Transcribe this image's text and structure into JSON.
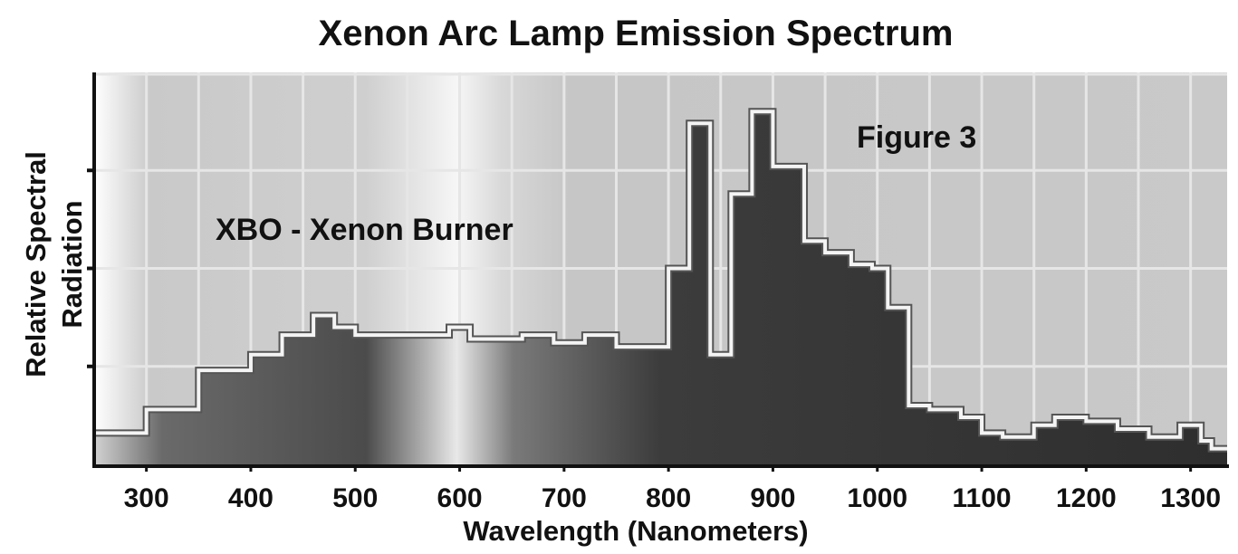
{
  "chart_data": {
    "type": "area",
    "title": "Xenon Arc Lamp Emission Spectrum",
    "xlabel": "Wavelength (Nanometers)",
    "ylabel_lines": [
      "Relative Spectral",
      "Radiation"
    ],
    "xlim": [
      250,
      1335
    ],
    "ylim": [
      0,
      100
    ],
    "x_ticks": [
      300,
      400,
      500,
      600,
      700,
      800,
      900,
      1000,
      1100,
      1200,
      1300
    ],
    "x_tick_labels": [
      "300",
      "400",
      "500",
      "600",
      "700",
      "800",
      "900",
      "1000",
      "1100",
      "1200",
      "1300"
    ],
    "y_ticks": [
      25,
      50,
      75
    ],
    "grid": true,
    "step_x": [
      250,
      300,
      350,
      400,
      430,
      460,
      480,
      500,
      590,
      610,
      660,
      690,
      720,
      750,
      800,
      820,
      840,
      860,
      880,
      900,
      930,
      950,
      975,
      995,
      1010,
      1030,
      1050,
      1080,
      1100,
      1120,
      1150,
      1170,
      1200,
      1230,
      1260,
      1290,
      1310,
      1320,
      1335
    ],
    "step_y": [
      8,
      14,
      24,
      28,
      33,
      38,
      35,
      33,
      35,
      32,
      33,
      31,
      33,
      30,
      50,
      87,
      28,
      69,
      90,
      76,
      57,
      54,
      51,
      50,
      40,
      15,
      14,
      12,
      8,
      7,
      10,
      12,
      11,
      9,
      7,
      10,
      6,
      4,
      4
    ],
    "annotations": [
      "XBO - Xenon Burner",
      "Figure 3"
    ]
  }
}
